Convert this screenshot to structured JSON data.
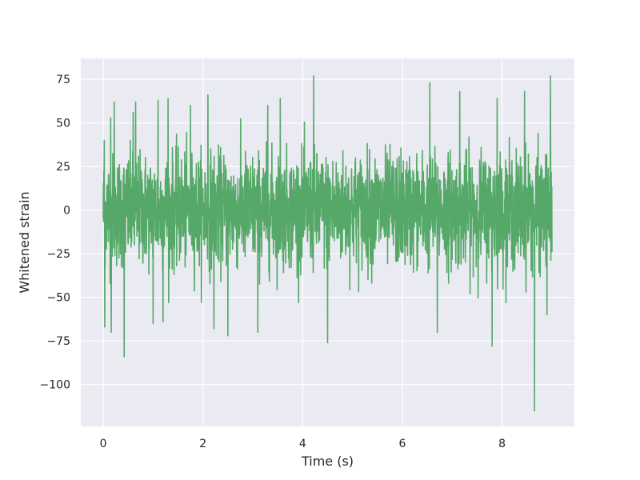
{
  "chart_data": {
    "type": "line",
    "title": "",
    "xlabel": "Time (s)",
    "ylabel": "Whitened strain",
    "xlim": [
      -0.45,
      9.45
    ],
    "ylim": [
      -124,
      87
    ],
    "xticks": [
      0,
      2,
      4,
      6,
      8
    ],
    "yticks": [
      75,
      50,
      25,
      0,
      -25,
      -50,
      -75,
      -100
    ],
    "xtick_labels": [
      "0",
      "2",
      "4",
      "6",
      "8"
    ],
    "ytick_labels": [
      "75",
      "50",
      "25",
      "0",
      "−25",
      "−50",
      "−75",
      "−100"
    ],
    "grid": true,
    "background": "#eaeaf2",
    "line_color": "#55a868",
    "series": [
      {
        "x_range": [
          0,
          9
        ],
        "typical_envelope": [
          -45,
          45
        ],
        "peaks": [
          {
            "x": 0.02,
            "y": 40
          },
          {
            "x": 0.15,
            "y": 53
          },
          {
            "x": 0.22,
            "y": 62
          },
          {
            "x": 0.6,
            "y": 56
          },
          {
            "x": 0.65,
            "y": 62
          },
          {
            "x": 1.1,
            "y": 63
          },
          {
            "x": 1.3,
            "y": 64
          },
          {
            "x": 1.75,
            "y": 60
          },
          {
            "x": 2.1,
            "y": 66
          },
          {
            "x": 3.3,
            "y": 60
          },
          {
            "x": 3.55,
            "y": 64
          },
          {
            "x": 4.22,
            "y": 77
          },
          {
            "x": 6.55,
            "y": 73
          },
          {
            "x": 7.15,
            "y": 68
          },
          {
            "x": 7.9,
            "y": 64
          },
          {
            "x": 8.45,
            "y": 68
          },
          {
            "x": 8.97,
            "y": 77
          }
        ],
        "troughs": [
          {
            "x": 0.03,
            "y": -67
          },
          {
            "x": 0.16,
            "y": -70
          },
          {
            "x": 0.42,
            "y": -84
          },
          {
            "x": 1.0,
            "y": -65
          },
          {
            "x": 1.2,
            "y": -64
          },
          {
            "x": 2.22,
            "y": -68
          },
          {
            "x": 2.5,
            "y": -72
          },
          {
            "x": 3.1,
            "y": -70
          },
          {
            "x": 4.5,
            "y": -76
          },
          {
            "x": 6.7,
            "y": -70
          },
          {
            "x": 7.8,
            "y": -78
          },
          {
            "x": 8.65,
            "y": -115
          },
          {
            "x": 8.9,
            "y": -60
          }
        ]
      }
    ]
  }
}
